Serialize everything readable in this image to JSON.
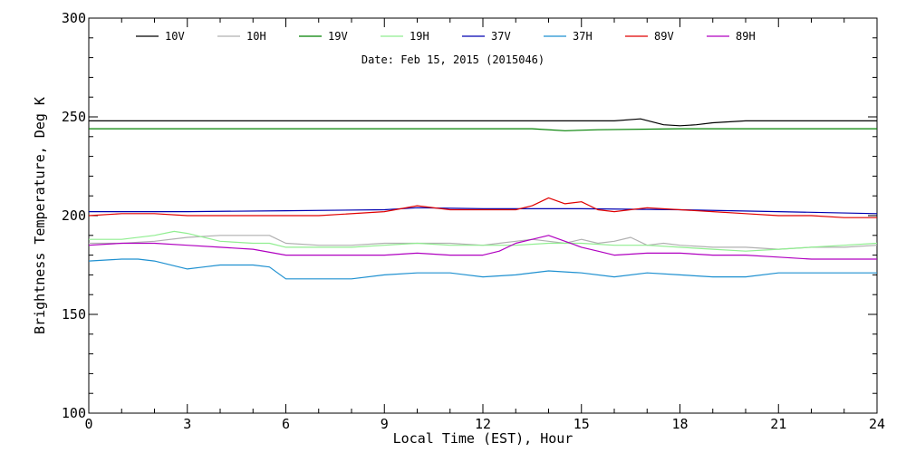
{
  "chart_data": {
    "type": "line",
    "title": "",
    "subtitle": "Date: Feb 15, 2015 (2015046)",
    "xlabel": "Local Time (EST), Hour",
    "ylabel": "Brightness Temperature, Deg K",
    "xlim": [
      0,
      24
    ],
    "ylim": [
      100,
      300
    ],
    "xticks": [
      0,
      3,
      6,
      9,
      12,
      15,
      18,
      21,
      24
    ],
    "yticks": [
      100,
      150,
      200,
      250,
      300
    ],
    "grid": false,
    "legend_position": "top",
    "series": [
      {
        "name": "10V",
        "color": "#000000",
        "x": [
          0,
          1,
          2,
          3,
          4,
          5,
          6,
          7,
          8,
          9,
          10,
          11,
          12,
          13,
          14,
          15,
          16,
          16.8,
          17.5,
          18,
          18.5,
          19,
          20,
          21,
          22,
          23,
          24
        ],
        "y": [
          248,
          248,
          248,
          248,
          248,
          248,
          248,
          248,
          248,
          248,
          248,
          248,
          248,
          248,
          248,
          248,
          248,
          249,
          246,
          245.5,
          246,
          247,
          248,
          248,
          248,
          248,
          248
        ]
      },
      {
        "name": "10H",
        "color": "#b0b0b0",
        "x": [
          0,
          1,
          2,
          3,
          4,
          5,
          5.5,
          6,
          7,
          8,
          9,
          10,
          11,
          12,
          12.5,
          13,
          13.5,
          14,
          14.5,
          15,
          15.5,
          16,
          16.5,
          17,
          17.5,
          18,
          19,
          20,
          21,
          22,
          23,
          24
        ],
        "y": [
          186,
          186,
          187,
          189,
          190,
          190,
          190,
          186,
          185,
          185,
          186,
          186,
          186,
          185,
          186,
          187,
          188,
          187,
          186,
          188,
          186,
          187,
          189,
          185,
          186,
          185,
          184,
          184,
          183,
          184,
          184,
          185
        ]
      },
      {
        "name": "19V",
        "color": "#008000",
        "x": [
          0,
          3,
          6,
          9,
          12,
          13.5,
          14.5,
          15.5,
          18,
          21,
          24
        ],
        "y": [
          244,
          244,
          244,
          244,
          244,
          244,
          243,
          243.5,
          244,
          244,
          244
        ]
      },
      {
        "name": "19H",
        "color": "#90ee90",
        "x": [
          0,
          1,
          2,
          2.6,
          3,
          4,
          5,
          5.5,
          6,
          7,
          8,
          9,
          10,
          11,
          12,
          13,
          14,
          15,
          16,
          17,
          18,
          19,
          20,
          21,
          22,
          23,
          24
        ],
        "y": [
          188,
          188,
          190,
          192,
          191,
          187,
          186,
          186,
          184,
          184,
          184,
          185,
          186,
          185,
          185,
          185,
          186,
          186,
          185,
          185,
          184,
          183,
          182,
          183,
          184,
          185,
          186
        ]
      },
      {
        "name": "37V",
        "color": "#0000b0",
        "x": [
          0,
          3,
          6,
          9,
          10,
          12,
          15,
          18,
          21,
          24
        ],
        "y": [
          202,
          202,
          202.5,
          203,
          204,
          203.5,
          203.5,
          203,
          202,
          201
        ]
      },
      {
        "name": "37H",
        "color": "#1e90d0",
        "x": [
          0,
          1,
          1.5,
          2,
          3,
          3.5,
          4,
          5,
          5.5,
          6,
          7,
          8,
          9,
          10,
          11,
          12,
          13,
          14,
          15,
          16,
          17,
          18,
          19,
          20,
          21,
          22,
          23,
          24
        ],
        "y": [
          177,
          178,
          178,
          177,
          173,
          174,
          175,
          175,
          174,
          168,
          168,
          168,
          170,
          171,
          171,
          169,
          170,
          172,
          171,
          169,
          171,
          170,
          169,
          169,
          171,
          171,
          171,
          171
        ]
      },
      {
        "name": "89V",
        "color": "#e00000",
        "x": [
          0,
          1,
          2,
          3,
          5,
          7,
          9,
          10,
          11,
          12,
          13,
          13.5,
          14,
          14.5,
          15,
          15.5,
          16,
          17,
          18,
          19,
          20,
          21,
          22,
          23,
          24
        ],
        "y": [
          200,
          201,
          201,
          200,
          200,
          200,
          202,
          205,
          203,
          203,
          203,
          205,
          209,
          206,
          207,
          203,
          202,
          204,
          203,
          202,
          201,
          200,
          200,
          199,
          199
        ]
      },
      {
        "name": "89H",
        "color": "#b000c0",
        "x": [
          0,
          1,
          2,
          3,
          4,
          5,
          6,
          7,
          8,
          9,
          10,
          11,
          12,
          12.5,
          13,
          13.5,
          14,
          14.5,
          15,
          15.5,
          16,
          17,
          18,
          19,
          20,
          21,
          22,
          23,
          24
        ],
        "y": [
          185,
          186,
          186,
          185,
          184,
          183,
          180,
          180,
          180,
          180,
          181,
          180,
          180,
          182,
          186,
          188,
          190,
          187,
          184,
          182,
          180,
          181,
          181,
          180,
          180,
          179,
          178,
          178,
          178
        ]
      }
    ]
  }
}
